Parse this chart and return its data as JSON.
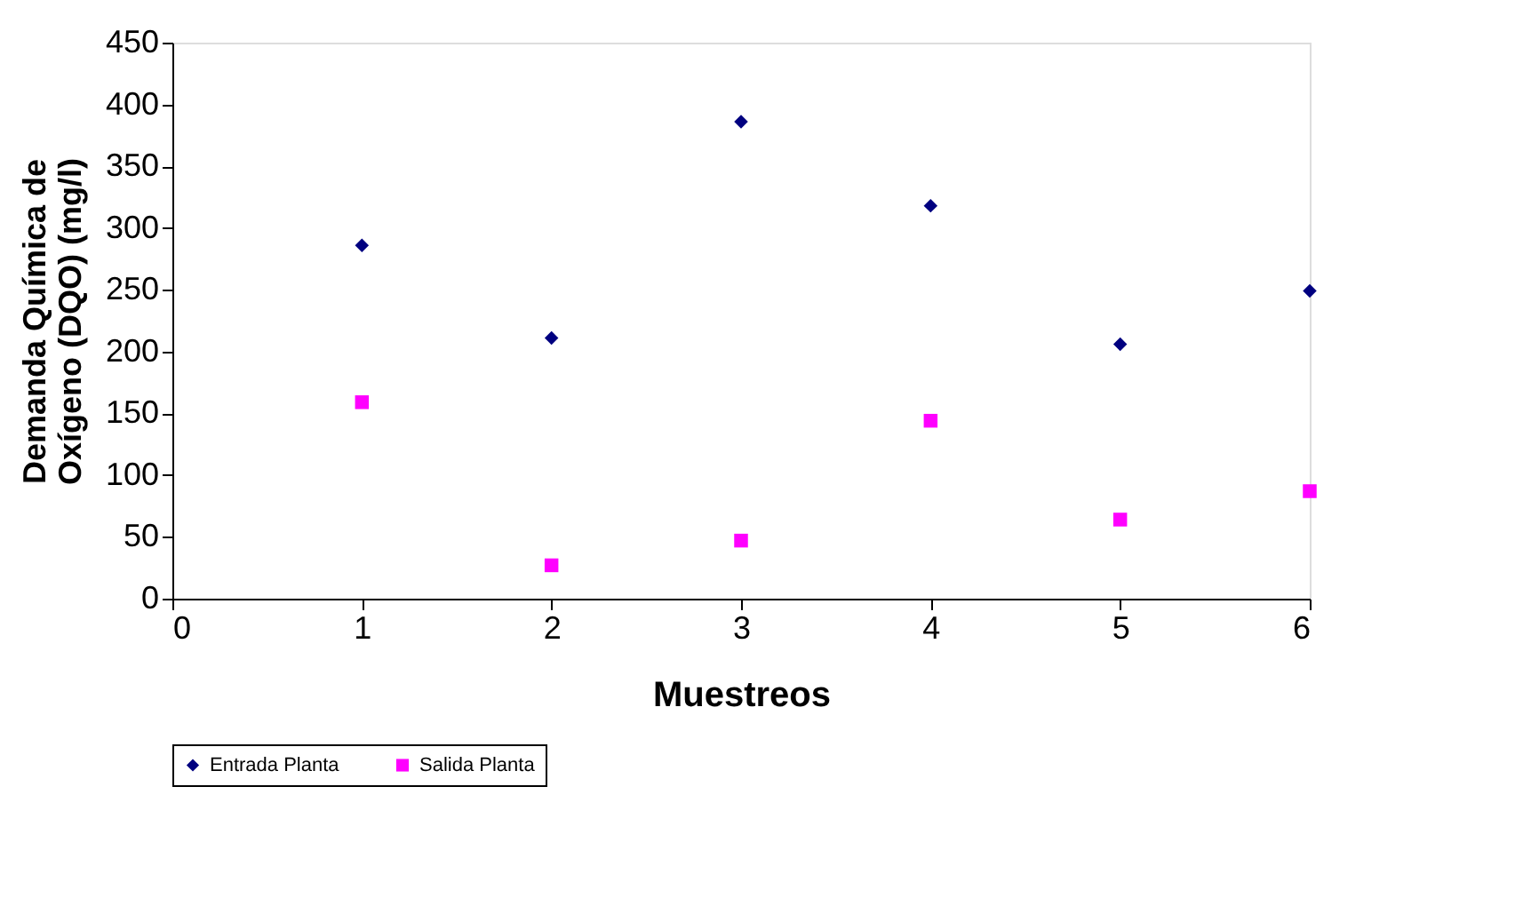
{
  "chart_data": {
    "type": "scatter",
    "xlabel": "Muestreos",
    "ylabel": "Demanda Química de Oxígeno (DQO) (mg/l)",
    "x": [
      1,
      2,
      3,
      4,
      5,
      6
    ],
    "series": [
      {
        "name": "Entrada Planta",
        "color": "#000080",
        "marker": "diamond",
        "values": [
          286,
          211,
          386,
          318,
          206,
          249
        ]
      },
      {
        "name": "Salida Planta",
        "color": "#ff00ff",
        "marker": "square",
        "values": [
          159,
          27,
          47,
          144,
          64,
          87
        ]
      }
    ],
    "xlim": [
      0,
      6
    ],
    "xticks": [
      0,
      1,
      2,
      3,
      4,
      5,
      6
    ],
    "ylim": [
      0,
      450
    ],
    "yticks": [
      0,
      50,
      100,
      150,
      200,
      250,
      300,
      350,
      400,
      450
    ],
    "grid": false,
    "legend": "bottom"
  }
}
